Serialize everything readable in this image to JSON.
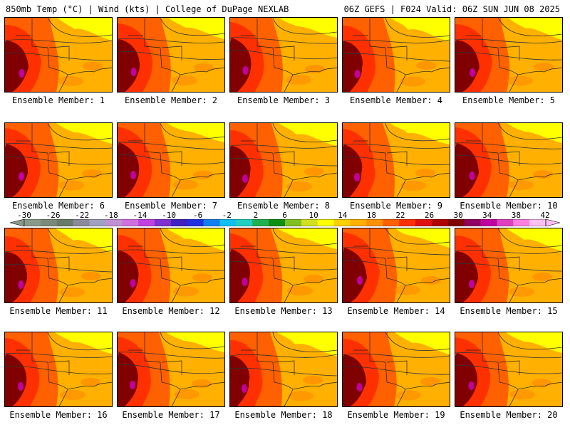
{
  "header": {
    "left": "850mb Temp (°C) | Wind (kts) | College of DuPage NEXLAB",
    "right": "06Z GEFS | F024 Valid: 06Z SUN JUN 08 2025"
  },
  "members": [
    "Ensemble Member: 1",
    "Ensemble Member: 2",
    "Ensemble Member: 3",
    "Ensemble Member: 4",
    "Ensemble Member: 5",
    "Ensemble Member: 6",
    "Ensemble Member: 7",
    "Ensemble Member: 8",
    "Ensemble Member: 9",
    "Ensemble Member: 10",
    "Ensemble Member: 11",
    "Ensemble Member: 12",
    "Ensemble Member: 13",
    "Ensemble Member: 14",
    "Ensemble Member: 15",
    "Ensemble Member: 16",
    "Ensemble Member: 17",
    "Ensemble Member: 18",
    "Ensemble Member: 19",
    "Ensemble Member: 20"
  ],
  "colorbar": {
    "labels": [
      "-30",
      "-26",
      "-22",
      "-18",
      "-14",
      "-10",
      "-6",
      "-2",
      "2",
      "6",
      "10",
      "14",
      "18",
      "22",
      "26",
      "30",
      "34",
      "38",
      "42"
    ],
    "colors": [
      "#8a9a8a",
      "#7a8a7a",
      "#6a7a6a",
      "#8a8a9a",
      "#a0a0c0",
      "#c090d0",
      "#d070e0",
      "#c040e0",
      "#8030d0",
      "#4020c0",
      "#2030e0",
      "#1080f0",
      "#10c0f0",
      "#20d0c0",
      "#20b050",
      "#109010",
      "#80c020",
      "#d0e020",
      "#ffff00",
      "#ffd000",
      "#ffb000",
      "#ff9000",
      "#ff6000",
      "#ff3000",
      "#e01010",
      "#b00000",
      "#800000",
      "#900060",
      "#c000a0",
      "#e040c0",
      "#ff80e0",
      "#ffc0f0"
    ]
  },
  "legend_colors": {
    "hot": "#800000",
    "warm": "#ff6000",
    "mild": "#ffb000",
    "cool": "#ffff00",
    "extreme": "#c000a0"
  }
}
